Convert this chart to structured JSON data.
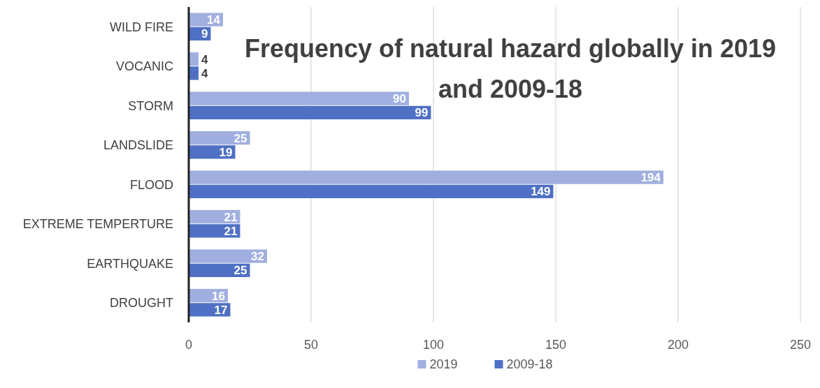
{
  "chart_data": {
    "type": "bar",
    "orientation": "horizontal",
    "title": "Frequency of natural hazard globally in 2019 and 2009-18",
    "categories": [
      "WILD FIRE",
      "VOCANIC",
      "STORM",
      "LANDSLIDE",
      "FLOOD",
      "EXTREME TEMPERTURE",
      "EARTHQUAKE",
      "DROUGHT"
    ],
    "series": [
      {
        "name": "2019",
        "color": "#a0afdf",
        "values": [
          14,
          4,
          90,
          25,
          194,
          21,
          32,
          16
        ]
      },
      {
        "name": "2009-18",
        "color": "#4f70c4",
        "values": [
          9,
          4,
          99,
          19,
          149,
          21,
          25,
          17
        ]
      }
    ],
    "xlim": [
      0,
      250
    ],
    "xticks": [
      0,
      50,
      100,
      150,
      200,
      250
    ],
    "grid": "x",
    "legend": "bottom",
    "data_labels": true
  }
}
